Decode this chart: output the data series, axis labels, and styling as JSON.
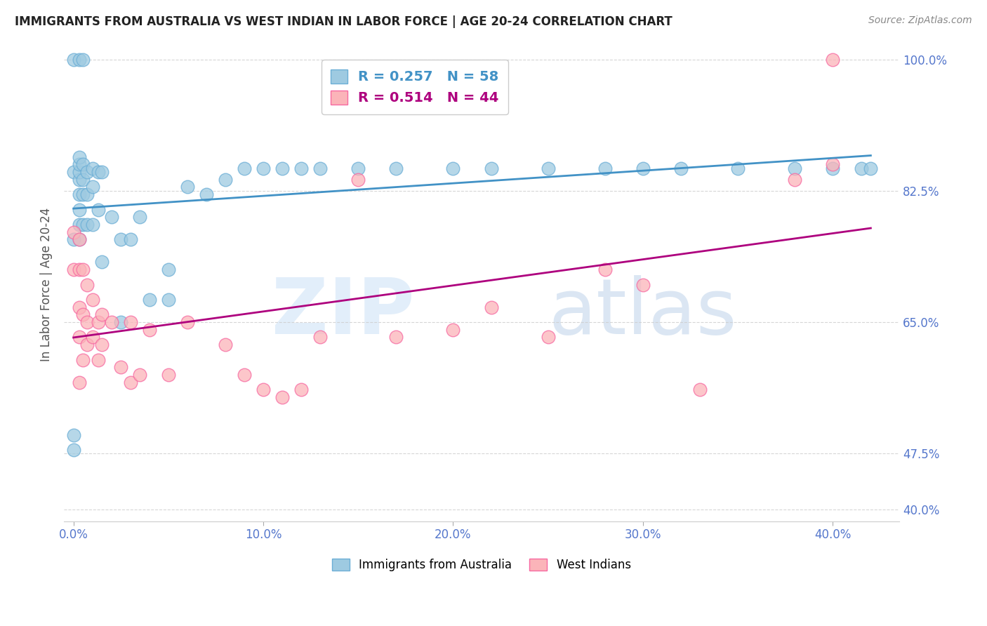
{
  "title": "IMMIGRANTS FROM AUSTRALIA VS WEST INDIAN IN LABOR FORCE | AGE 20-24 CORRELATION CHART",
  "source": "Source: ZipAtlas.com",
  "ylabel": "In Labor Force | Age 20-24",
  "legend_label_australia": "Immigrants from Australia",
  "legend_label_west": "West Indians",
  "australia_R": 0.257,
  "australia_N": 58,
  "west_R": 0.514,
  "west_N": 44,
  "australia_x": [
    0.0,
    0.0,
    0.0,
    0.0,
    0.0,
    0.003,
    0.003,
    0.003,
    0.003,
    0.003,
    0.003,
    0.003,
    0.003,
    0.003,
    0.005,
    0.005,
    0.005,
    0.005,
    0.005,
    0.007,
    0.007,
    0.007,
    0.01,
    0.01,
    0.01,
    0.013,
    0.013,
    0.015,
    0.015,
    0.02,
    0.025,
    0.025,
    0.03,
    0.035,
    0.04,
    0.05,
    0.05,
    0.06,
    0.07,
    0.08,
    0.09,
    0.1,
    0.11,
    0.12,
    0.13,
    0.15,
    0.17,
    0.2,
    0.22,
    0.25,
    0.28,
    0.3,
    0.32,
    0.35,
    0.38,
    0.4,
    0.415,
    0.42
  ],
  "australia_y": [
    0.48,
    0.5,
    0.76,
    0.85,
    1.0,
    0.76,
    0.78,
    0.8,
    0.82,
    0.84,
    0.85,
    0.86,
    0.87,
    1.0,
    0.78,
    0.82,
    0.84,
    0.86,
    1.0,
    0.78,
    0.82,
    0.85,
    0.78,
    0.83,
    0.855,
    0.8,
    0.85,
    0.73,
    0.85,
    0.79,
    0.65,
    0.76,
    0.76,
    0.79,
    0.68,
    0.68,
    0.72,
    0.83,
    0.82,
    0.84,
    0.855,
    0.855,
    0.855,
    0.855,
    0.855,
    0.855,
    0.855,
    0.855,
    0.855,
    0.855,
    0.855,
    0.855,
    0.855,
    0.855,
    0.855,
    0.855,
    0.855,
    0.855
  ],
  "west_x": [
    0.0,
    0.0,
    0.003,
    0.003,
    0.003,
    0.003,
    0.003,
    0.005,
    0.005,
    0.005,
    0.007,
    0.007,
    0.007,
    0.01,
    0.01,
    0.013,
    0.013,
    0.015,
    0.015,
    0.02,
    0.025,
    0.03,
    0.03,
    0.035,
    0.04,
    0.05,
    0.06,
    0.08,
    0.09,
    0.1,
    0.11,
    0.12,
    0.13,
    0.15,
    0.17,
    0.2,
    0.22,
    0.25,
    0.28,
    0.3,
    0.33,
    0.38,
    0.4,
    0.4
  ],
  "west_y": [
    0.72,
    0.77,
    0.57,
    0.63,
    0.67,
    0.72,
    0.76,
    0.6,
    0.66,
    0.72,
    0.62,
    0.65,
    0.7,
    0.63,
    0.68,
    0.6,
    0.65,
    0.62,
    0.66,
    0.65,
    0.59,
    0.57,
    0.65,
    0.58,
    0.64,
    0.58,
    0.65,
    0.62,
    0.58,
    0.56,
    0.55,
    0.56,
    0.63,
    0.84,
    0.63,
    0.64,
    0.67,
    0.63,
    0.72,
    0.7,
    0.56,
    0.84,
    0.86,
    1.0
  ],
  "australia_color": "#9ecae1",
  "australia_edge": "#6baed6",
  "west_color": "#fbb4b9",
  "west_edge": "#f768a1",
  "line_aus_color": "#4292c6",
  "line_west_color": "#ae017e",
  "watermark_zip": "ZIP",
  "watermark_atlas": "atlas",
  "background_color": "#ffffff",
  "grid_color": "#cccccc",
  "ylim": [
    0.385,
    1.015
  ],
  "xlim": [
    -0.005,
    0.435
  ],
  "y_tick_vals": [
    0.4,
    0.475,
    0.65,
    0.825,
    1.0
  ],
  "y_tick_labels": [
    "40.0%",
    "47.5%",
    "65.0%",
    "82.5%",
    "100.0%"
  ],
  "x_tick_vals": [
    0.0,
    0.1,
    0.2,
    0.3,
    0.4
  ],
  "x_tick_labels": [
    "0.0%",
    "10.0%",
    "20.0%",
    "30.0%",
    "40.0%"
  ]
}
